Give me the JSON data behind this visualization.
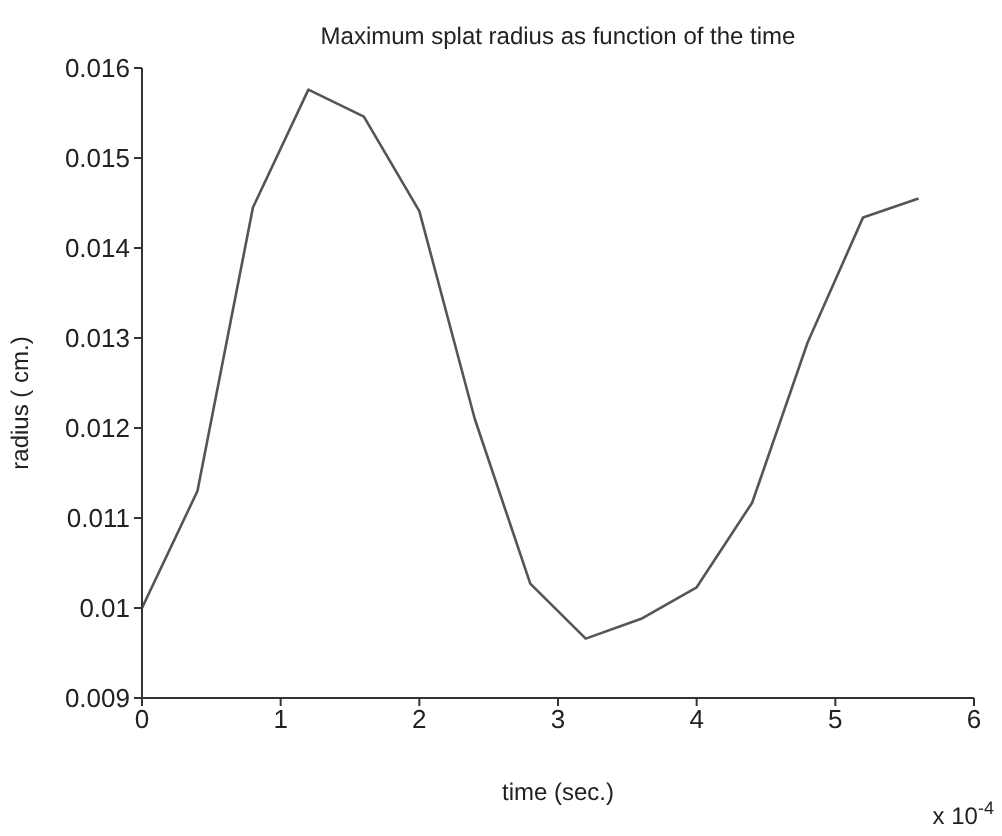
{
  "chart_data": {
    "type": "line",
    "title": "Maximum splat radius as function of the time",
    "xlabel": "time (sec.)",
    "ylabel": "radius ( cm.)",
    "annotations": [
      "x 10$^{-4}$"
    ],
    "x": [
      0,
      0.4,
      0.8,
      1.2,
      1.6,
      2.0,
      2.4,
      2.8,
      3.2,
      3.6,
      4.0,
      4.4,
      4.8,
      5.2,
      5.6
    ],
    "series": [
      {
        "color": "#555555",
        "values": [
          0.01,
          0.0113,
          0.01445,
          0.01576,
          0.01546,
          0.01441,
          0.0121,
          0.01027,
          0.00966,
          0.00988,
          0.01023,
          0.01117,
          0.01295,
          0.01434,
          0.01455
        ]
      }
    ],
    "xlim": [
      0,
      6
    ],
    "xticks": [
      0,
      1,
      2,
      3,
      4,
      5,
      6
    ],
    "ylim": [
      0.009,
      0.016
    ],
    "yticks": [
      0.009,
      0.01,
      0.011,
      0.012,
      0.013,
      0.014,
      0.015,
      0.016
    ],
    "grid": false,
    "marker": "none",
    "line_style": "solid"
  }
}
